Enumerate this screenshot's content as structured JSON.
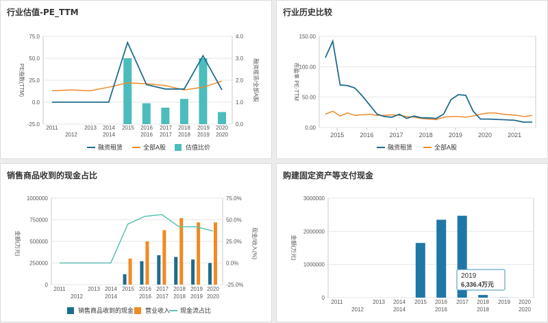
{
  "colors": {
    "financing": "#1f6b8c",
    "all_a": "#ee8a2a",
    "ratio": "#4cbcbc",
    "sales_cash": "#1f6b8c",
    "revenue": "#f08a24",
    "cashflow": "#5cc0b2",
    "capex": "#1f77a6",
    "grid": "#e6e6e6",
    "axis_text": "#555555"
  },
  "panels": {
    "pe_ttm": {
      "title": "行业估值-PE_TTM"
    },
    "history": {
      "title": "行业历史比较"
    },
    "sales_cash": {
      "title": "销售商品收到的现金占比"
    },
    "capex": {
      "title": "购建固定资产等支付现金"
    }
  },
  "chart_data": [
    {
      "id": "pe_ttm",
      "type": "line+bar",
      "x_ticks_top": [
        "2011",
        "2013",
        "2014",
        "2015",
        "2016",
        "2017",
        "2018",
        "2019",
        "2020"
      ],
      "x_ticks_bottom": [
        "2012",
        "2014",
        "2016",
        "2017",
        "2018",
        "2019",
        "2020"
      ],
      "ylabel": "PE指数(TTM)",
      "ylabel_right": "融资租赁/全部A股",
      "ylim": [
        -25,
        75
      ],
      "yticks": [
        "75.0",
        "50.0",
        "25.0",
        "0.0",
        "-25.0"
      ],
      "ylim_right": [
        0,
        4
      ],
      "yticks_right": [
        "4.0",
        "3.0",
        "2.0",
        "1.0",
        "0.0"
      ],
      "series": [
        {
          "name": "融资租赁",
          "kind": "line",
          "axis": "left",
          "points": [
            [
              2011,
              0
            ],
            [
              2012,
              0
            ],
            [
              2013,
              0
            ],
            [
              2014,
              0
            ],
            [
              2015,
              68
            ],
            [
              2016,
              20
            ],
            [
              2017,
              15
            ],
            [
              2018,
              15
            ],
            [
              2019,
              53
            ],
            [
              2020,
              14
            ]
          ]
        },
        {
          "name": "全部A股",
          "kind": "line",
          "axis": "left",
          "points": [
            [
              2011,
              13
            ],
            [
              2012,
              14
            ],
            [
              2013,
              13
            ],
            [
              2014,
              17
            ],
            [
              2015,
              22
            ],
            [
              2016,
              21
            ],
            [
              2017,
              19
            ],
            [
              2018,
              14
            ],
            [
              2019,
              17
            ],
            [
              2020,
              24
            ]
          ]
        },
        {
          "name": "估值比价",
          "kind": "bar",
          "axis": "right",
          "points": [
            [
              2015,
              3.0
            ],
            [
              2016,
              0.95
            ],
            [
              2017,
              0.75
            ],
            [
              2018,
              1.15
            ],
            [
              2019,
              3.0
            ],
            [
              2020,
              0.55
            ]
          ]
        }
      ]
    },
    {
      "id": "history",
      "type": "line",
      "x_ticks": [
        "2015",
        "2016",
        "2017",
        "2018",
        "2019",
        "2020",
        "2021"
      ],
      "ylabel": "市盈率 PE-TTM",
      "ylim": [
        0,
        150
      ],
      "yticks": [
        "150.00",
        "100.00",
        "50.00",
        "0.00"
      ],
      "series": [
        {
          "name": "融资租赁",
          "points": [
            [
              2014.6,
              115
            ],
            [
              2014.85,
              142
            ],
            [
              2015.1,
              70
            ],
            [
              2015.35,
              69
            ],
            [
              2015.6,
              65
            ],
            [
              2015.85,
              52
            ],
            [
              2016.1,
              37
            ],
            [
              2016.35,
              22
            ],
            [
              2016.6,
              18
            ],
            [
              2016.85,
              17
            ],
            [
              2017.1,
              22
            ],
            [
              2017.35,
              15
            ],
            [
              2017.6,
              19
            ],
            [
              2017.85,
              16
            ],
            [
              2018.1,
              16
            ],
            [
              2018.35,
              15
            ],
            [
              2018.6,
              22
            ],
            [
              2018.85,
              46
            ],
            [
              2019.1,
              54
            ],
            [
              2019.35,
              53
            ],
            [
              2019.6,
              27
            ],
            [
              2019.85,
              14
            ],
            [
              2020.1,
              14
            ],
            [
              2020.6,
              13
            ],
            [
              2021.0,
              12
            ],
            [
              2021.3,
              9
            ],
            [
              2021.6,
              9
            ]
          ]
        },
        {
          "name": "全部A股",
          "points": [
            [
              2014.6,
              22
            ],
            [
              2014.85,
              27
            ],
            [
              2015.1,
              19
            ],
            [
              2015.35,
              24
            ],
            [
              2015.6,
              20
            ],
            [
              2015.85,
              21
            ],
            [
              2016.1,
              22
            ],
            [
              2016.35,
              20
            ],
            [
              2016.6,
              20
            ],
            [
              2016.85,
              21
            ],
            [
              2017.1,
              20
            ],
            [
              2017.35,
              18
            ],
            [
              2017.6,
              17
            ],
            [
              2017.85,
              15
            ],
            [
              2018.1,
              14
            ],
            [
              2018.35,
              13
            ],
            [
              2018.6,
              17
            ],
            [
              2018.85,
              18
            ],
            [
              2019.1,
              18
            ],
            [
              2019.35,
              17
            ],
            [
              2019.6,
              19
            ],
            [
              2019.85,
              22
            ],
            [
              2020.1,
              24
            ],
            [
              2020.35,
              24
            ],
            [
              2020.6,
              22
            ],
            [
              2020.85,
              21
            ],
            [
              2021.1,
              20
            ],
            [
              2021.35,
              18
            ],
            [
              2021.6,
              20
            ]
          ]
        }
      ]
    },
    {
      "id": "sales_cash",
      "type": "bar+line",
      "x_ticks_top": [
        "2011",
        "2013",
        "2014",
        "2015",
        "2016",
        "2017",
        "2018",
        "2019",
        "2020"
      ],
      "x_ticks_bottom": [
        "2012",
        "2014",
        "2016",
        "2017",
        "2018",
        "2019",
        "2020"
      ],
      "ylabel": "金额(万元)",
      "ylabel_right": "现金/收入(%)",
      "ylim": [
        0,
        1000000
      ],
      "yticks": [
        "1000000",
        "750000",
        "500000",
        "250000",
        "0"
      ],
      "ylim_right": [
        -25,
        75
      ],
      "yticks_right": [
        "75.0%",
        "50.0%",
        "25.0%",
        "0.0%",
        "-25.0%"
      ],
      "series": [
        {
          "name": "销售商品收到的现金",
          "kind": "bar",
          "axis": "left",
          "points": [
            [
              2015,
              120000
            ],
            [
              2016,
              270000
            ],
            [
              2017,
              340000
            ],
            [
              2018,
              320000
            ],
            [
              2019,
              290000
            ],
            [
              2020,
              250000
            ]
          ]
        },
        {
          "name": "营业收入",
          "kind": "bar",
          "axis": "left",
          "points": [
            [
              2015,
              300000
            ],
            [
              2016,
              500000
            ],
            [
              2017,
              630000
            ],
            [
              2018,
              770000
            ],
            [
              2019,
              720000
            ],
            [
              2020,
              720000
            ]
          ]
        },
        {
          "name": "现金流占比",
          "kind": "line",
          "axis": "right",
          "points": [
            [
              2011,
              0
            ],
            [
              2012,
              0
            ],
            [
              2013,
              0
            ],
            [
              2014,
              0
            ],
            [
              2015,
              45
            ],
            [
              2016,
              54
            ],
            [
              2017,
              56
            ],
            [
              2018,
              42
            ],
            [
              2019,
              42
            ],
            [
              2020,
              37
            ]
          ]
        }
      ]
    },
    {
      "id": "capex",
      "type": "bar",
      "x_ticks_top": [
        "2011",
        "2013",
        "2014",
        "2015",
        "2016",
        "2017",
        "2018",
        "2019",
        "2020"
      ],
      "x_ticks_bottom": [
        "2012",
        "2014",
        "2016",
        "2018",
        "2020"
      ],
      "ylabel": "金额(万元)",
      "ylim": [
        0,
        3000000
      ],
      "yticks": [
        "3000000",
        "2000000",
        "1000000",
        "0"
      ],
      "series": [
        {
          "name": "购建固定资产等支付现金",
          "points": [
            [
              2015,
              1650000
            ],
            [
              2016,
              2350000
            ],
            [
              2017,
              2470000
            ],
            [
              2018,
              80000
            ],
            [
              2019,
              6336.4
            ]
          ]
        }
      ],
      "tooltip": {
        "year": "2019",
        "value": "6,336.4万元"
      }
    }
  ]
}
